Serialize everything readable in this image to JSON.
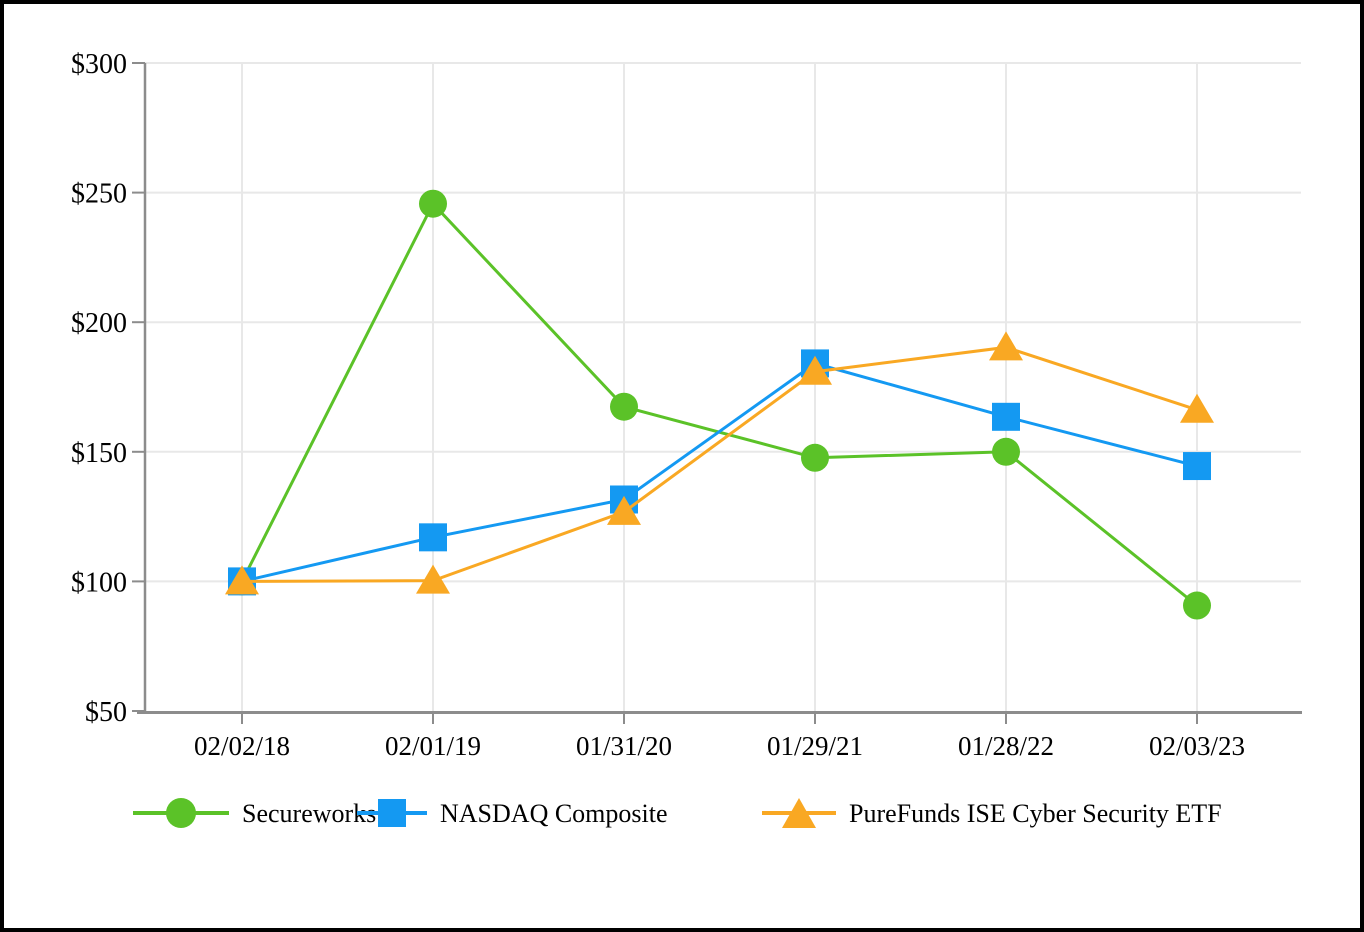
{
  "chart_data": {
    "type": "line",
    "title": "",
    "xlabel": "",
    "ylabel": "",
    "x_labels": [
      "02/02/18",
      "02/01/19",
      "01/31/20",
      "01/29/21",
      "01/28/22",
      "02/03/23"
    ],
    "y_tick_labels": [
      "$300",
      "$250",
      "$200",
      "$150",
      "$100",
      "$50"
    ],
    "ylim": [
      50,
      300
    ],
    "y_tick_step": 50,
    "grid": true,
    "legend_position": "bottom",
    "series": [
      {
        "name": "Secureworks",
        "marker": "circle",
        "color": "#5BC228",
        "values": [
          100,
          245.7,
          167.4,
          147.7,
          150.0,
          90.7
        ]
      },
      {
        "name": "NASDAQ Composite",
        "marker": "square",
        "color": "#1499F2",
        "values": [
          100,
          117.0,
          131.6,
          184.1,
          163.5,
          144.5
        ]
      },
      {
        "name": "PureFunds ISE Cyber Security ETF",
        "marker": "triangle",
        "color": "#F9A823",
        "values": [
          100,
          100.3,
          126.8,
          180.9,
          190.3,
          166.2
        ]
      }
    ],
    "colors": {
      "axis": "#8C8C8C",
      "gridline": "#E8E8E8",
      "text": "#000000"
    }
  }
}
